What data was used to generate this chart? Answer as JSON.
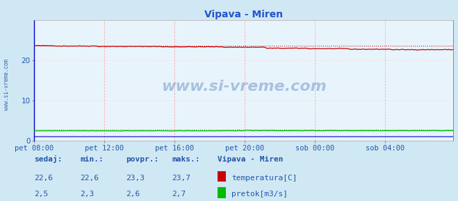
{
  "title": "Vipava - Miren",
  "bg_color": "#d0e8f4",
  "plot_bg_color": "#e8f4fc",
  "grid_color_v": "#ffaaaa",
  "grid_color_h": "#ffcccc",
  "xlim": [
    0,
    287
  ],
  "ylim": [
    0,
    30
  ],
  "yticks": [
    0,
    10,
    20
  ],
  "xtick_labels": [
    "pet 08:00",
    "pet 12:00",
    "pet 16:00",
    "pet 20:00",
    "sob 00:00",
    "sob 04:00"
  ],
  "xtick_positions": [
    0,
    48,
    96,
    144,
    192,
    240
  ],
  "temp_color": "#cc0000",
  "flow_color": "#00bb00",
  "height_color": "#0000dd",
  "watermark_text": "www.si-vreme.com",
  "watermark_color": "#3366aa",
  "sidebar_text": "www.si-vreme.com",
  "sidebar_color": "#3366aa",
  "legend_station": "Vipava - Miren",
  "legend_temp_label": "temperatura[C]",
  "legend_flow_label": "pretok[m3/s]",
  "stats_headers": [
    "sedaj:",
    "min.:",
    "povpr.:",
    "maks.:"
  ],
  "stats_temp": [
    "22,6",
    "22,6",
    "23,3",
    "23,7"
  ],
  "stats_flow": [
    "2,5",
    "2,3",
    "2,6",
    "2,7"
  ],
  "stats_color": "#2255aa",
  "title_color": "#2255cc",
  "title_fontsize": 10,
  "axis_label_color": "#2255aa",
  "tick_fontsize": 7.5,
  "stats_fontsize": 8,
  "left_spine_color": "#0000cc",
  "right_spine_color": "#00aa00"
}
